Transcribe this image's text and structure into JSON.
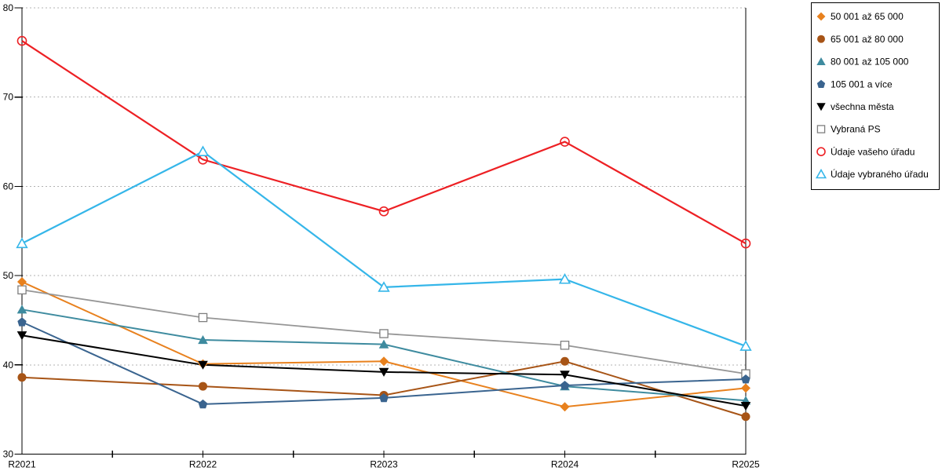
{
  "chart_data": {
    "type": "line",
    "title": "",
    "xlabel": "",
    "ylabel": "",
    "categories": [
      "R2021",
      "R2022",
      "R2023",
      "R2024",
      "R2025"
    ],
    "ylim": [
      30,
      80
    ],
    "y_ticks": [
      30,
      40,
      50,
      60,
      70,
      80
    ],
    "grid": "horizontal dotted gridlines at 40,50,60,70,80",
    "legend_position": "right",
    "series": [
      {
        "name": "50 001 až 65 000",
        "marker": "diamond",
        "color": "#E8811E",
        "values": [
          49.3,
          40.1,
          40.4,
          35.3,
          37.4
        ]
      },
      {
        "name": "65 001 až 80 000",
        "marker": "circle",
        "color": "#A75416",
        "values": [
          38.6,
          37.6,
          36.6,
          40.4,
          34.2
        ]
      },
      {
        "name": "80 001 až 105 000",
        "marker": "triangle-up",
        "color": "#3E8B9F",
        "values": [
          46.2,
          42.8,
          42.3,
          37.6,
          36.0
        ]
      },
      {
        "name": "105 001 a více",
        "marker": "pentagon",
        "color": "#3A648F",
        "values": [
          44.8,
          35.6,
          36.3,
          37.7,
          38.4
        ]
      },
      {
        "name": "všechna města",
        "marker": "triangle-down",
        "color": "#000000",
        "values": [
          43.3,
          40.0,
          39.2,
          38.9,
          35.4
        ]
      },
      {
        "name": "Vybraná PS",
        "marker": "open-square",
        "color": "#969696",
        "marker_stroke": "#7F7F7F",
        "values": [
          48.4,
          45.3,
          43.5,
          42.2,
          39.0
        ]
      },
      {
        "name": "Údaje vašeho úřadu",
        "marker": "open-circle",
        "color": "#ED2024",
        "values": [
          76.3,
          63.0,
          57.2,
          65.0,
          53.6
        ]
      },
      {
        "name": "Údaje vybraného úřadu",
        "marker": "open-triangle",
        "color": "#35B6E9",
        "values": [
          53.6,
          63.9,
          48.7,
          49.6,
          42.1
        ]
      }
    ],
    "colors": {
      "background": "#FFFFFF",
      "gridline": "#B3B3B3",
      "axis": "#000000",
      "legend_border": "#000000",
      "legend_background": "#FFFFFF"
    }
  }
}
